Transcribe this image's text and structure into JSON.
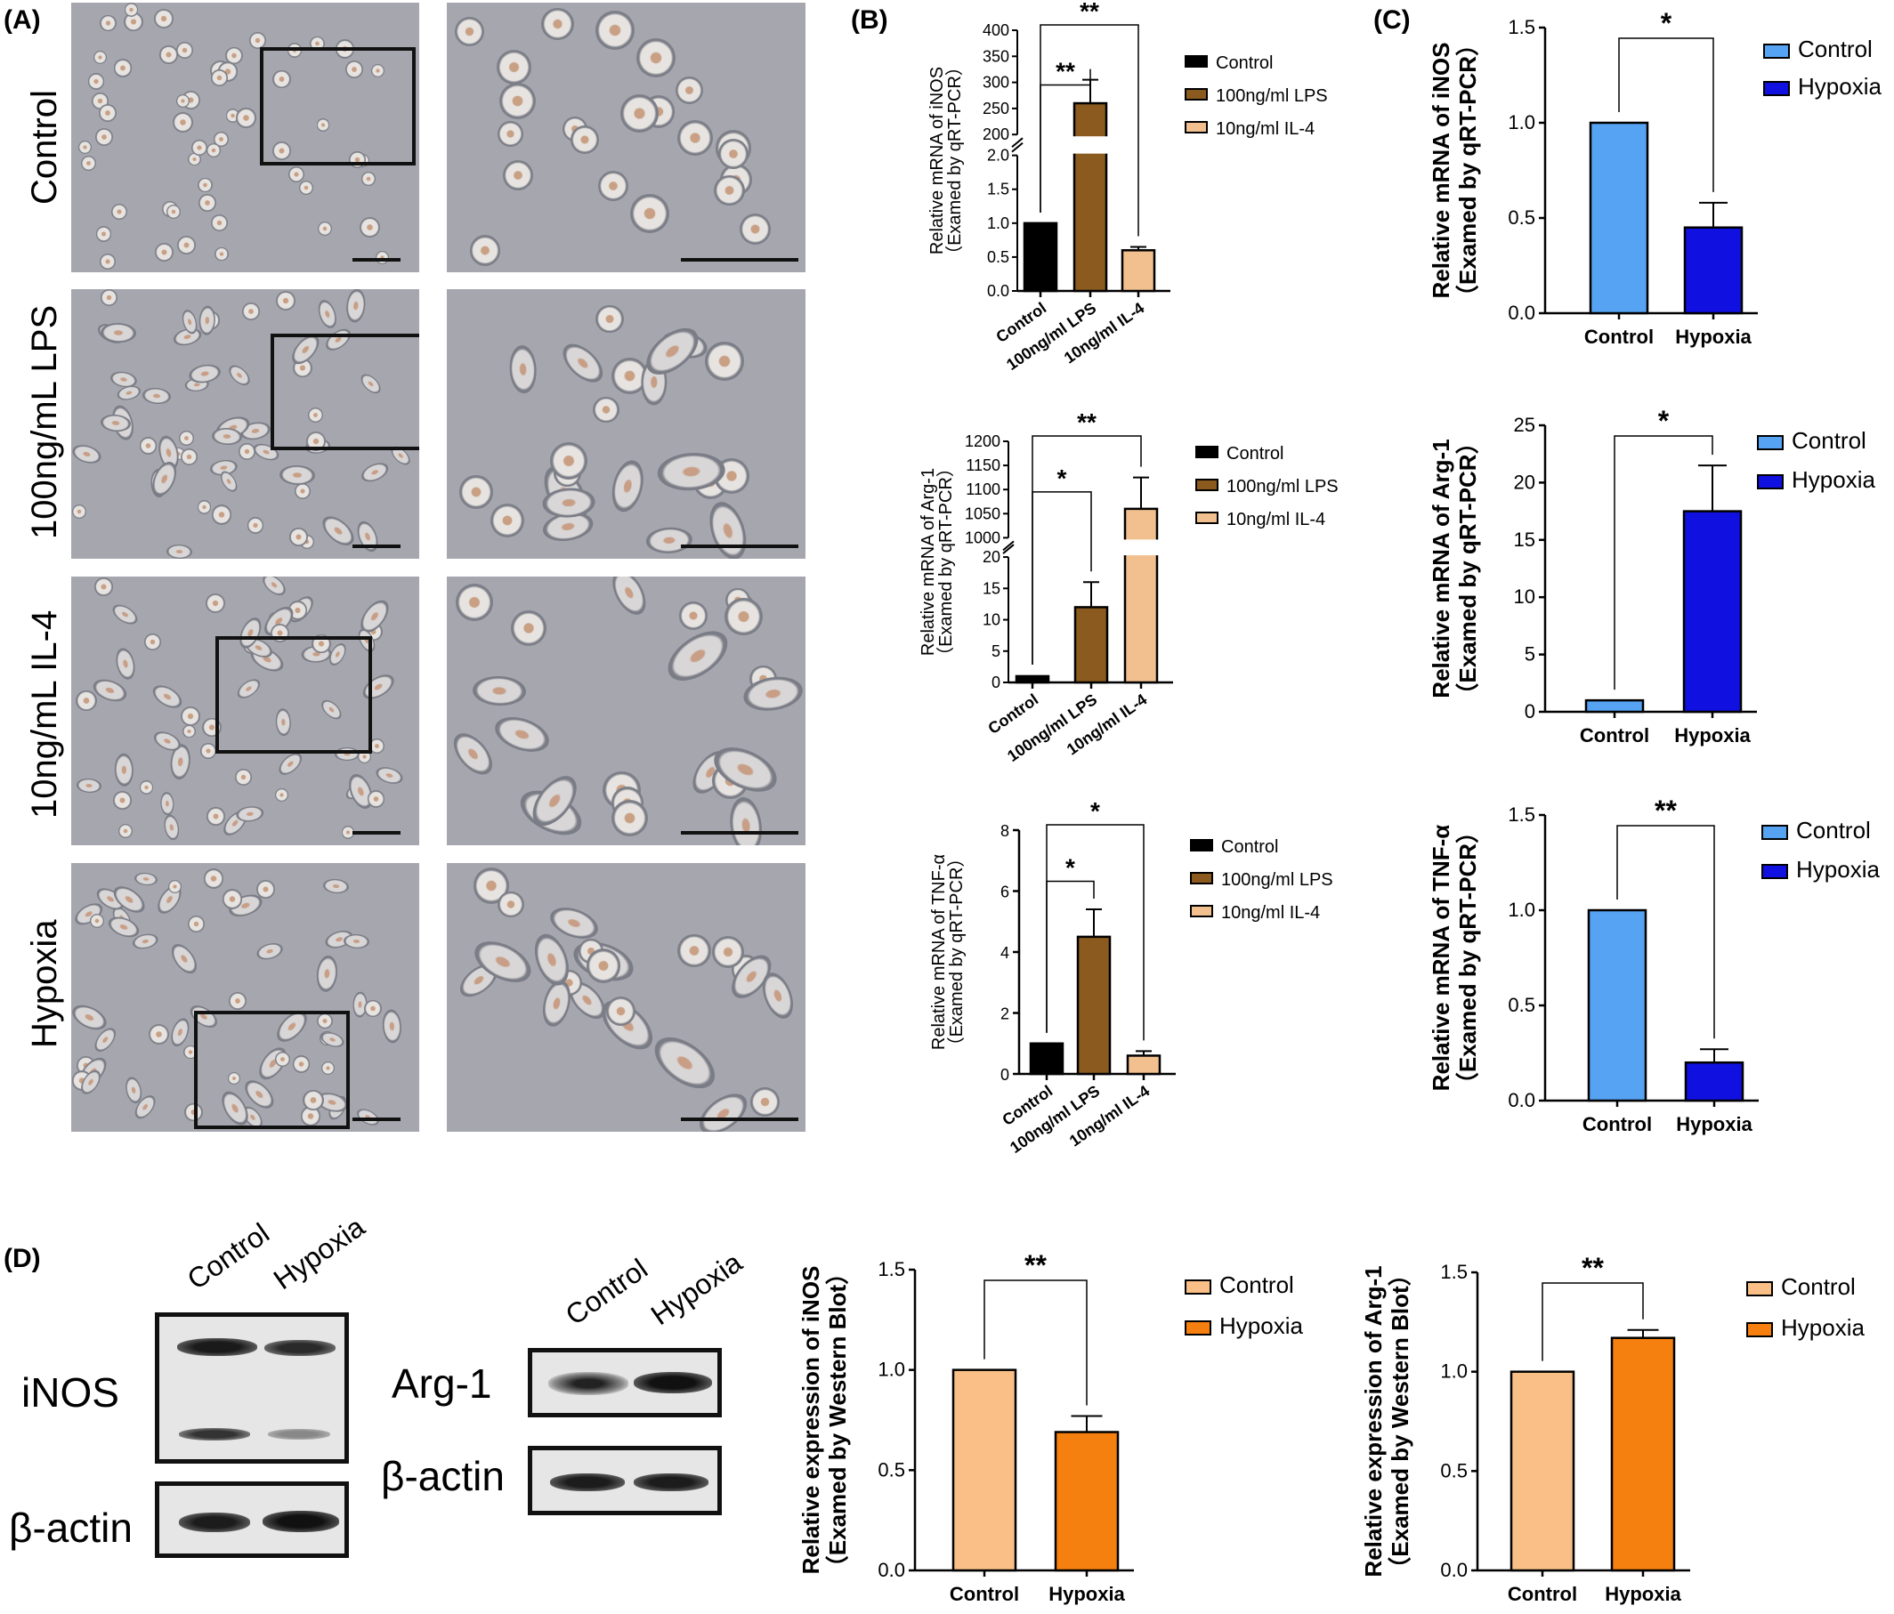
{
  "panels": {
    "a": "(A)",
    "b": "(B)",
    "c": "(C)",
    "d": "(D)"
  },
  "panel_a": {
    "rows": [
      "Control",
      "100ng/mL LPS",
      "10ng/mL IL-4",
      "Hypoxia"
    ]
  },
  "panel_d": {
    "lanes": [
      "Control",
      "Hypoxia"
    ],
    "blot_labels": {
      "inos": "iNOS",
      "arg1": "Arg-1",
      "actin": "β-actin"
    }
  },
  "colors": {
    "control_black": "#000000",
    "lps_brown": "#8b5a1f",
    "il4_peach": "#f2c08f",
    "control_lightblue": "#55a3f2",
    "hypoxia_blue": "#1010e0",
    "control_peach": "#f9bf86",
    "hypoxia_orange": "#f57f0f"
  },
  "chart_data": [
    {
      "id": "b1",
      "type": "bar",
      "panel": "B",
      "ylabel": [
        "Relative mRNA of iNOS",
        "（Examed by qRT-PCR）"
      ],
      "categories": [
        "Control",
        "100ng/ml LPS",
        "10ng/ml  IL-4"
      ],
      "legend": [
        "Control",
        "100ng/ml LPS",
        "10ng/ml  IL-4"
      ],
      "values": [
        1.0,
        260,
        0.6
      ],
      "errors": [
        0,
        45,
        0.05
      ],
      "yticks_low": [
        "0.0",
        "0.5",
        "1.0",
        "1.5",
        "2.0"
      ],
      "yticks_high": [
        "200",
        "250",
        "300",
        "350",
        "400"
      ],
      "broken_axis": true,
      "significance": [
        {
          "pair": [
            0,
            1
          ],
          "label": "**"
        },
        {
          "pair": [
            0,
            2
          ],
          "label": "**"
        }
      ]
    },
    {
      "id": "b2",
      "type": "bar",
      "panel": "B",
      "ylabel": [
        "Relative mRNA of Arg-1",
        "（Examed by qRT-PCR）"
      ],
      "categories": [
        "Control",
        "100ng/ml LPS",
        "10ng/ml IL-4"
      ],
      "legend": [
        "Control",
        "100ng/ml LPS",
        "10ng/ml IL-4"
      ],
      "values": [
        1.0,
        12,
        1060
      ],
      "errors": [
        0,
        4,
        65
      ],
      "yticks_low": [
        "0",
        "5",
        "10",
        "15",
        "20"
      ],
      "yticks_high": [
        "1000",
        "1050",
        "1100",
        "1150",
        "1200"
      ],
      "broken_axis": true,
      "significance": [
        {
          "pair": [
            0,
            1
          ],
          "label": "*"
        },
        {
          "pair": [
            0,
            2
          ],
          "label": "**"
        }
      ]
    },
    {
      "id": "b3",
      "type": "bar",
      "panel": "B",
      "ylabel": [
        "Relative mRNA of TNF-α",
        "（Examed by qRT-PCR）"
      ],
      "categories": [
        "Control",
        "100ng/ml LPS",
        "10ng/ml IL-4"
      ],
      "legend": [
        "Control",
        "100ng/ml LPS",
        "10ng/ml IL-4"
      ],
      "values": [
        1.0,
        4.5,
        0.6
      ],
      "errors": [
        0,
        0.9,
        0.15
      ],
      "ylim": [
        0,
        8
      ],
      "yticks": [
        "0",
        "2",
        "4",
        "6",
        "8"
      ],
      "significance": [
        {
          "pair": [
            0,
            1
          ],
          "label": "*"
        },
        {
          "pair": [
            0,
            2
          ],
          "label": "*"
        }
      ]
    },
    {
      "id": "c1",
      "type": "bar",
      "panel": "C",
      "ylabel": [
        "Relative mRNA of iNOS",
        "（Examed by qRT-PCR）"
      ],
      "categories": [
        "Control",
        "Hypoxia"
      ],
      "legend": [
        "Control",
        "Hypoxia"
      ],
      "values": [
        1.0,
        0.45
      ],
      "errors": [
        0,
        0.13
      ],
      "ylim": [
        0,
        1.5
      ],
      "yticks": [
        "0.0",
        "0.5",
        "1.0",
        "1.5"
      ],
      "significance": [
        {
          "pair": [
            0,
            1
          ],
          "label": "*"
        }
      ]
    },
    {
      "id": "c2",
      "type": "bar",
      "panel": "C",
      "ylabel": [
        "Relative mRNA of Arg-1",
        "（Examed by qRT-PCR）"
      ],
      "categories": [
        "Control",
        "Hypoxia"
      ],
      "legend": [
        "Control",
        "Hypoxia"
      ],
      "values": [
        1.0,
        17.5
      ],
      "errors": [
        0,
        4.0
      ],
      "ylim": [
        0,
        25
      ],
      "yticks": [
        "0",
        "5",
        "10",
        "15",
        "20",
        "25"
      ],
      "significance": [
        {
          "pair": [
            0,
            1
          ],
          "label": "*"
        }
      ]
    },
    {
      "id": "c3",
      "type": "bar",
      "panel": "C",
      "ylabel": [
        "Relative mRNA of TNF-α",
        "（Examed by qRT-PCR）"
      ],
      "categories": [
        "Control",
        "Hypoxia"
      ],
      "legend": [
        "Control",
        "Hypoxia"
      ],
      "values": [
        1.0,
        0.2
      ],
      "errors": [
        0,
        0.07
      ],
      "ylim": [
        0,
        1.5
      ],
      "yticks": [
        "0.0",
        "0.5",
        "1.0",
        "1.5"
      ],
      "significance": [
        {
          "pair": [
            0,
            1
          ],
          "label": "**"
        }
      ]
    },
    {
      "id": "d1",
      "type": "bar",
      "panel": "D",
      "ylabel": [
        "Relative expression of iNOS",
        "（Examed by Western Blot）"
      ],
      "categories": [
        "Control",
        "Hypoxia"
      ],
      "legend": [
        "Control",
        "Hypoxia"
      ],
      "values": [
        1.0,
        0.69
      ],
      "errors": [
        0,
        0.08
      ],
      "ylim": [
        0,
        1.5
      ],
      "yticks": [
        "0.0",
        "0.5",
        "1.0",
        "1.5"
      ],
      "significance": [
        {
          "pair": [
            0,
            1
          ],
          "label": "**"
        }
      ]
    },
    {
      "id": "d2",
      "type": "bar",
      "panel": "D",
      "ylabel": [
        "Relative expression of Arg-1",
        "（Examed by Western Blot）"
      ],
      "categories": [
        "Control",
        "Hypoxia"
      ],
      "legend": [
        "Control",
        "Hypoxia"
      ],
      "values": [
        1.0,
        1.17
      ],
      "errors": [
        0,
        0.04
      ],
      "ylim": [
        0,
        1.5
      ],
      "yticks": [
        "0.0",
        "0.5",
        "1.0",
        "1.5"
      ],
      "significance": [
        {
          "pair": [
            0,
            1
          ],
          "label": "**"
        }
      ]
    }
  ]
}
